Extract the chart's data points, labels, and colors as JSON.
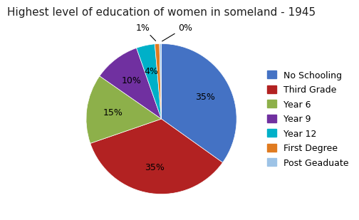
{
  "title": "Highest level of education of women in someland - 1945",
  "labels": [
    "No Schooling",
    "Third Grade",
    "Year 6",
    "Year 9",
    "Year 12",
    "First Degree",
    "Post Geaduate"
  ],
  "values": [
    35,
    35,
    15,
    10,
    4,
    1,
    0
  ],
  "plot_values": [
    35,
    35,
    15,
    10,
    4,
    1,
    0.4
  ],
  "colors": [
    "#4472C4",
    "#B22222",
    "#8DB04A",
    "#7030A0",
    "#00B0C8",
    "#E07B20",
    "#9DC3E6"
  ],
  "title_fontsize": 11,
  "legend_fontsize": 9,
  "pct_fontsize": 9,
  "background_color": "#FFFFFF"
}
